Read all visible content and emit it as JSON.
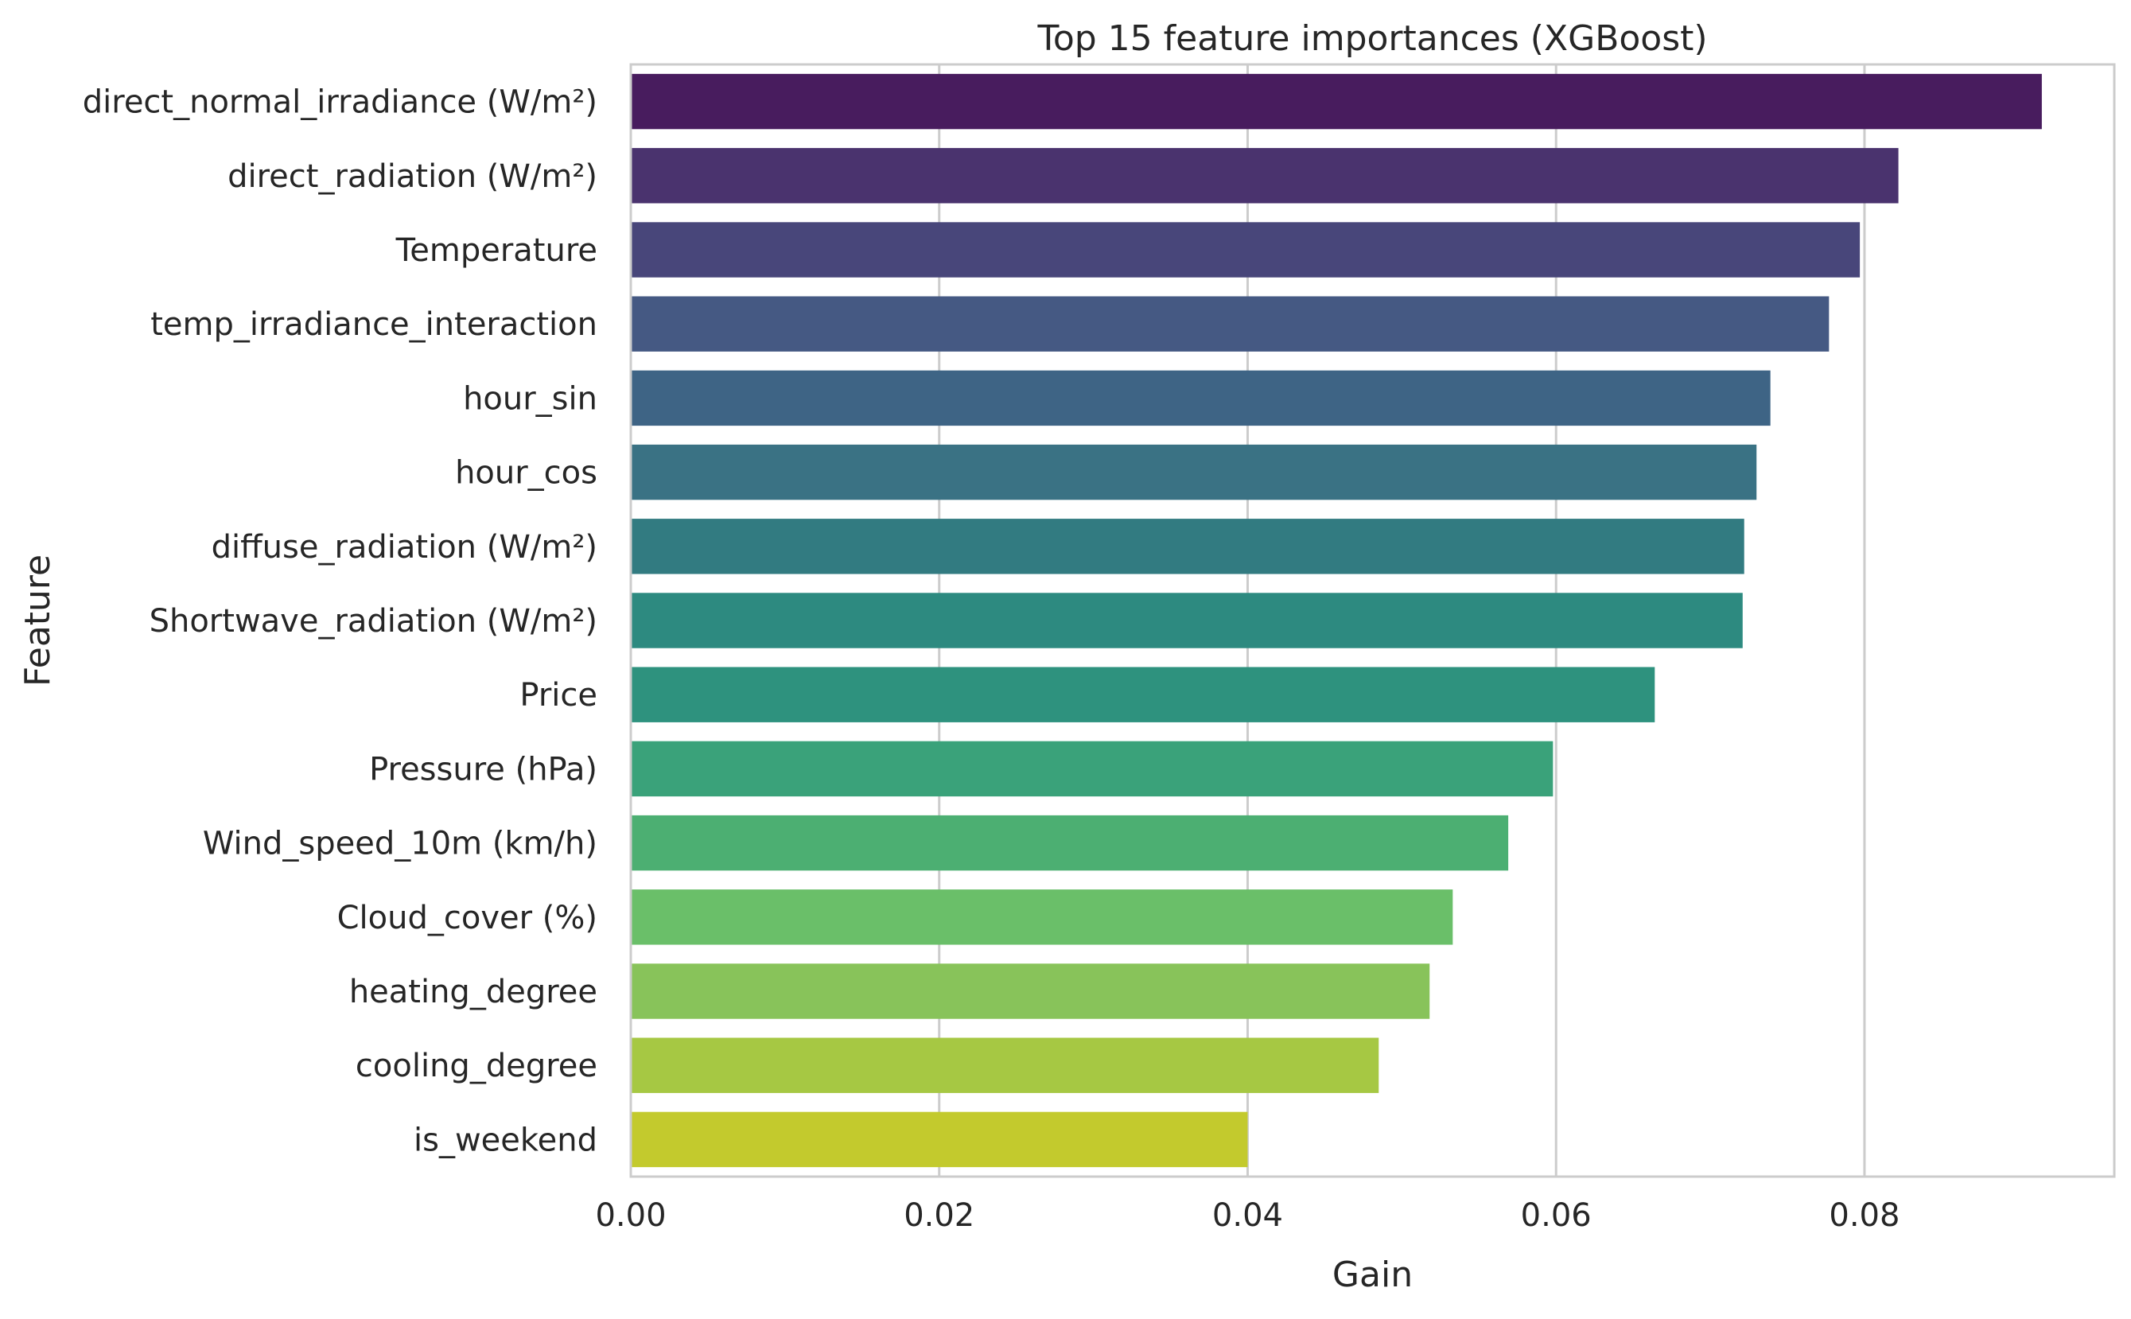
{
  "chart_data": {
    "type": "bar",
    "orientation": "horizontal",
    "title": "Top 15 feature importances (XGBoost)",
    "xlabel": "Gain",
    "ylabel": "Feature",
    "xlim": [
      0,
      0.0962
    ],
    "xticks": [
      0.0,
      0.02,
      0.04,
      0.06,
      0.08
    ],
    "xtick_labels": [
      "0.00",
      "0.02",
      "0.04",
      "0.06",
      "0.08"
    ],
    "grid": "vertical",
    "categories": [
      "direct_normal_irradiance (W/m²)",
      "direct_radiation (W/m²)",
      "Temperature",
      "temp_irradiance_interaction",
      "hour_sin",
      "hour_cos",
      "diffuse_radiation (W/m²)",
      "Shortwave_radiation (W/m²)",
      "Price",
      "Pressure (hPa)",
      "Wind_speed_10m (km/h)",
      "Cloud_cover (%)",
      "heating_degree",
      "cooling_degree",
      "is_weekend"
    ],
    "values": [
      0.0915,
      0.0822,
      0.0797,
      0.0777,
      0.0739,
      0.073,
      0.0722,
      0.0721,
      0.0664,
      0.0598,
      0.0569,
      0.0533,
      0.0518,
      0.0485,
      0.04
    ],
    "colors": [
      "#481c5e",
      "#4a336e",
      "#48467a",
      "#455983",
      "#3e6485",
      "#3a7284",
      "#327b81",
      "#2d8a80",
      "#2e927e",
      "#3aa27a",
      "#4caf72",
      "#6abf69",
      "#88c35a",
      "#a6c843",
      "#c3ca2d"
    ]
  }
}
